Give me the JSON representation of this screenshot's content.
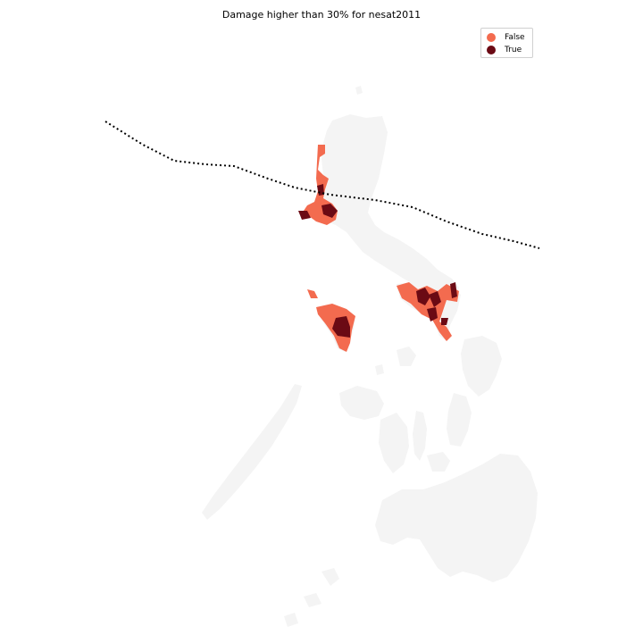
{
  "title": "Damage higher than 30% for nesat2011",
  "legend": {
    "items": [
      {
        "label": "False",
        "color": "#f36b4f",
        "marker_icon": "circle-marker-icon"
      },
      {
        "label": "True",
        "color": "#6b0a14",
        "marker_icon": "circle-marker-icon"
      }
    ]
  },
  "colors": {
    "base_land": "#f4f4f4",
    "damage_false": "#f36b4f",
    "damage_true": "#6b0a14",
    "track_line": "#000000"
  },
  "map_layers": [
    "land-basemap",
    "damaged-municipalities",
    "typhoon-track"
  ],
  "track_style": "dotted"
}
